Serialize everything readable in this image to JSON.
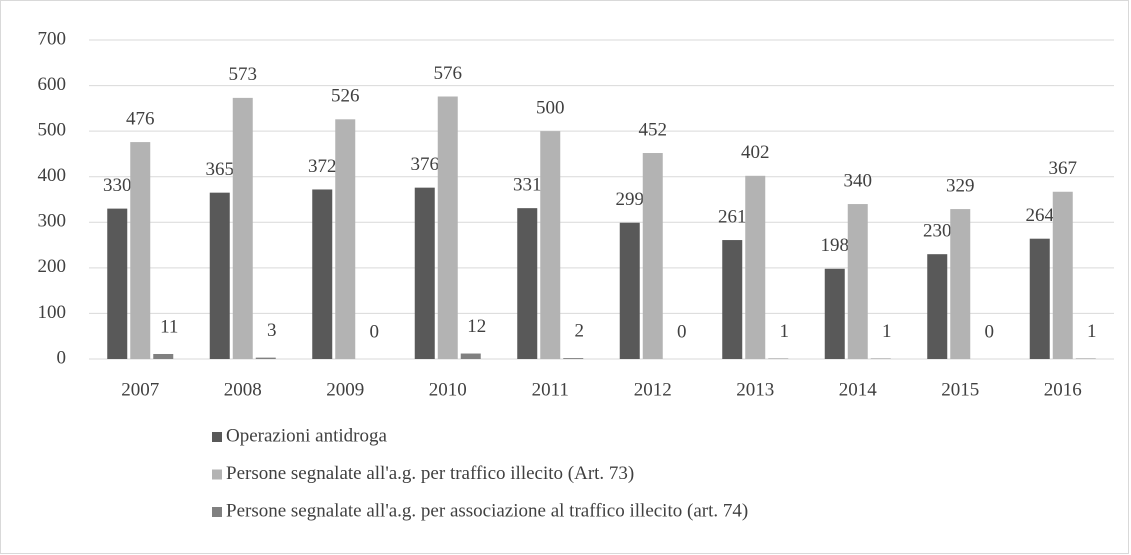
{
  "chart_data": {
    "type": "bar",
    "categories": [
      "2007",
      "2008",
      "2009",
      "2010",
      "2011",
      "2012",
      "2013",
      "2014",
      "2015",
      "2016"
    ],
    "series": [
      {
        "name": "Operazioni antidroga",
        "color": "#595959",
        "values": [
          330,
          365,
          372,
          376,
          331,
          299,
          261,
          198,
          230,
          264
        ]
      },
      {
        "name": "Persone segnalate all'a.g. per traffico illecito (Art. 73)",
        "color": "#b3b3b3",
        "values": [
          476,
          573,
          526,
          576,
          500,
          452,
          402,
          340,
          329,
          367
        ]
      },
      {
        "name": "Persone segnalate all'a.g. per associazione al traffico illecito (art. 74)",
        "color": "#808080",
        "values": [
          11,
          3,
          0,
          12,
          2,
          0,
          1,
          1,
          0,
          1
        ]
      }
    ],
    "ylim": [
      0,
      700
    ],
    "yticks": [
      0,
      100,
      200,
      300,
      400,
      500,
      600,
      700
    ],
    "grid": true
  }
}
